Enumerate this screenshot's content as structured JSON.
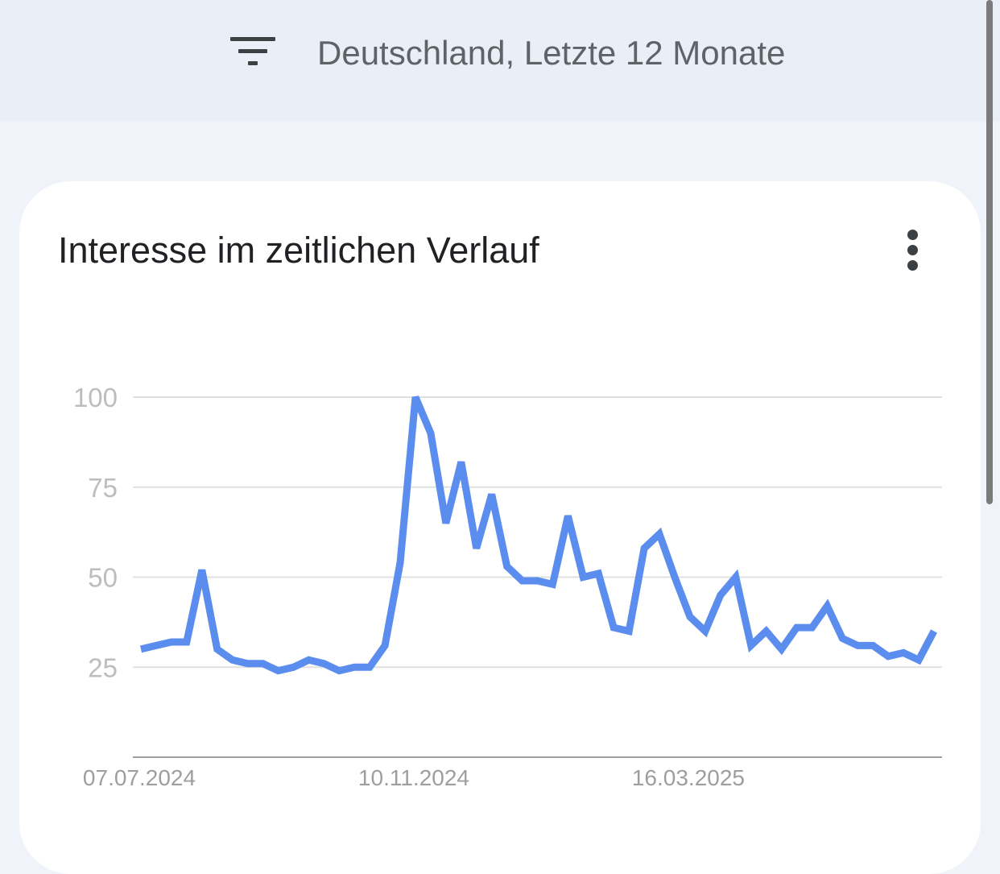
{
  "header": {
    "filter_label": "Deutschland, Letzte 12 Monate",
    "filter_icon": "filter-icon"
  },
  "card": {
    "title": "Interesse im zeitlichen Verlauf",
    "menu_icon": "more-vert-icon"
  },
  "chart_data": {
    "type": "line",
    "title": "Interesse im zeitlichen Verlauf",
    "xlabel": "",
    "ylabel": "",
    "ylim": [
      0,
      100
    ],
    "yticks": [
      25,
      50,
      75,
      100
    ],
    "grid": true,
    "x_tick_labels": [
      {
        "index": 0,
        "label": "07.07.2024"
      },
      {
        "index": 18,
        "label": "10.11.2024"
      },
      {
        "index": 36,
        "label": "16.03.2025"
      }
    ],
    "line_color": "#5b8def",
    "series": [
      {
        "values": [
          30,
          31,
          32,
          32,
          52,
          30,
          27,
          26,
          26,
          24,
          25,
          27,
          26,
          24,
          25,
          25,
          31,
          54,
          100,
          90,
          65,
          82,
          58,
          73,
          53,
          49,
          49,
          48,
          67,
          50,
          51,
          36,
          35,
          58,
          62,
          50,
          39,
          35,
          45,
          50,
          31,
          35,
          30,
          36,
          36,
          42,
          33,
          31,
          31,
          28,
          29,
          27,
          35
        ]
      }
    ]
  }
}
